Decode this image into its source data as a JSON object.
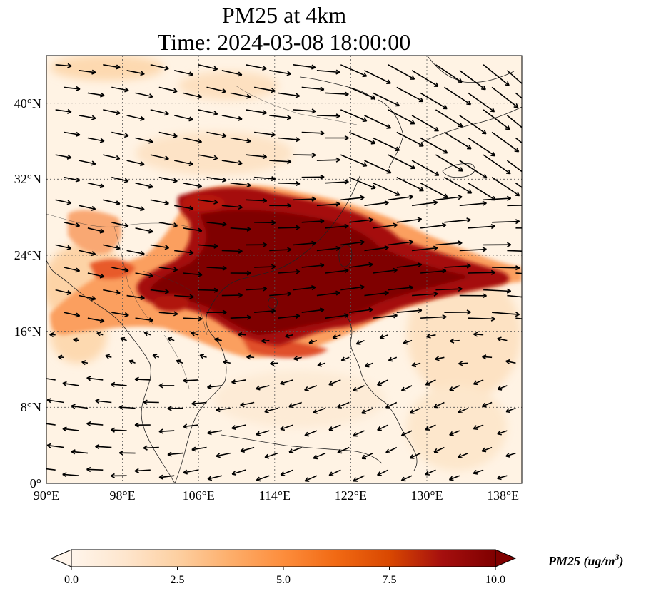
{
  "figure": {
    "title_line1": "PM25 at 4km",
    "title_line2": "Time: 2024-03-08 18:00:00"
  },
  "map": {
    "lon_range": [
      90,
      140
    ],
    "lat_range": [
      0,
      45
    ],
    "x_ticks": [
      "90°E",
      "98°E",
      "106°E",
      "114°E",
      "122°E",
      "130°E",
      "138°E"
    ],
    "x_tick_values": [
      90,
      98,
      106,
      114,
      122,
      130,
      138
    ],
    "y_ticks": [
      "0°",
      "8°N",
      "16°N",
      "24°N",
      "32°N",
      "40°N"
    ],
    "y_tick_values": [
      0,
      8,
      16,
      24,
      32,
      40
    ],
    "gridlines": true,
    "vectors": "wind"
  },
  "colorbar": {
    "label": "PM25 (ug/m",
    "label_sup": "3",
    "label_close": ")",
    "ticks": [
      "0.0",
      "2.5",
      "5.0",
      "7.5",
      "10.0"
    ],
    "tick_values": [
      0,
      2.5,
      5,
      7.5,
      10
    ],
    "range": [
      0,
      10
    ],
    "extend": "both",
    "colormap": [
      "#fff5eb",
      "#fee6ce",
      "#fdd0a2",
      "#fdae6b",
      "#fd8d3c",
      "#f16913",
      "#d94801",
      "#a50f0e",
      "#7f0000"
    ]
  }
}
